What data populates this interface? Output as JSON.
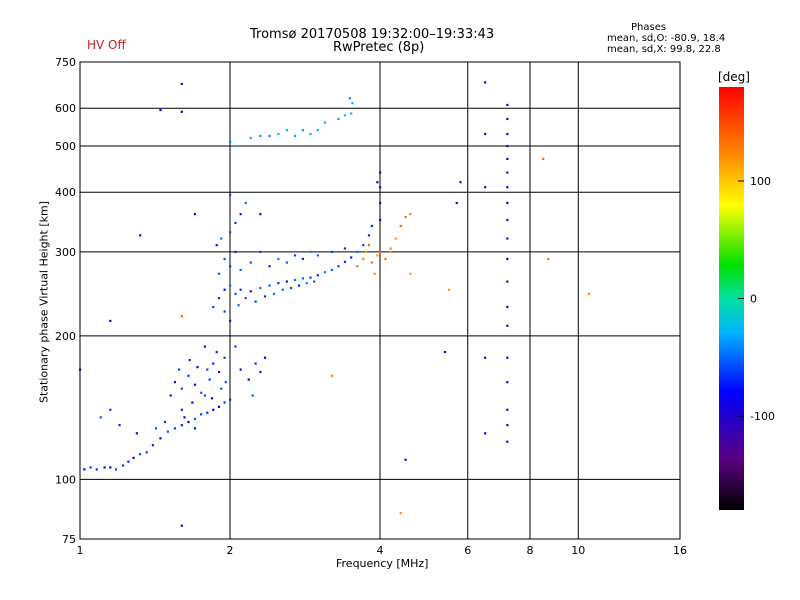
{
  "header": {
    "title_line1": "Tromsø 20170508 19:32:00–19:33:43",
    "title_line2": "RwPretec (8p)",
    "status": "HV Off"
  },
  "phase_box": {
    "title": "Phases",
    "line1": "mean, sd,O: -80.9, 18.4",
    "line2": "mean, sd,X:  99.8, 22.8"
  },
  "chart_data": {
    "type": "scatter",
    "title": "Tromsø 20170508 19:32:00–19:33:43",
    "subtitle": "RwPretec (8p)",
    "xlabel": "Frequency [MHz]",
    "ylabel": "Stationary phase Virtual Height [km]",
    "xscale": "log",
    "yscale": "log",
    "xlim": [
      1,
      16
    ],
    "ylim": [
      75,
      750
    ],
    "xticks": [
      1,
      2,
      4,
      6,
      8,
      10,
      16
    ],
    "yticks": [
      75,
      100,
      200,
      300,
      400,
      500,
      600,
      750
    ],
    "grid": true,
    "colorbar": {
      "label": "[deg]",
      "range": [
        -180,
        180
      ],
      "ticks": [
        -100,
        0,
        100
      ],
      "colormap": "rainbow"
    },
    "series": [
      {
        "name": "O-mode low-band trace (blue)",
        "phase_deg": -90,
        "points": [
          [
            1.02,
            105
          ],
          [
            1.05,
            106
          ],
          [
            1.08,
            105
          ],
          [
            1.12,
            106
          ],
          [
            1.15,
            106
          ],
          [
            1.18,
            105
          ],
          [
            1.22,
            107
          ],
          [
            1.25,
            109
          ],
          [
            1.28,
            111
          ],
          [
            1.32,
            113
          ],
          [
            1.36,
            114
          ],
          [
            1.4,
            118
          ],
          [
            1.45,
            122
          ],
          [
            1.5,
            126
          ],
          [
            1.55,
            128
          ],
          [
            1.6,
            130
          ],
          [
            1.65,
            132
          ],
          [
            1.7,
            134
          ],
          [
            1.75,
            137
          ],
          [
            1.8,
            138
          ],
          [
            1.85,
            140
          ],
          [
            1.9,
            142
          ],
          [
            1.95,
            145
          ],
          [
            2.0,
            147
          ],
          [
            1.52,
            150
          ],
          [
            1.55,
            160
          ],
          [
            1.6,
            155
          ],
          [
            1.65,
            165
          ],
          [
            1.7,
            158
          ],
          [
            1.72,
            172
          ],
          [
            1.78,
            150
          ],
          [
            1.82,
            162
          ],
          [
            1.85,
            175
          ],
          [
            1.9,
            168
          ],
          [
            1.92,
            155
          ],
          [
            1.95,
            180
          ],
          [
            1.6,
            140
          ],
          [
            1.68,
            145
          ],
          [
            1.75,
            152
          ],
          [
            1.8,
            170
          ],
          [
            1.88,
            185
          ],
          [
            1.62,
            135
          ],
          [
            1.7,
            128
          ],
          [
            1.58,
            170
          ],
          [
            1.66,
            178
          ],
          [
            1.78,
            190
          ],
          [
            1.84,
            148
          ],
          [
            1.96,
            160
          ],
          [
            2.05,
            190
          ],
          [
            2.1,
            170
          ],
          [
            2.18,
            162
          ],
          [
            2.22,
            150
          ],
          [
            2.25,
            175
          ],
          [
            2.3,
            168
          ],
          [
            2.35,
            180
          ],
          [
            1.1,
            135
          ],
          [
            1.15,
            140
          ],
          [
            1.2,
            130
          ],
          [
            1.3,
            125
          ],
          [
            1.42,
            128
          ],
          [
            1.48,
            132
          ]
        ]
      },
      {
        "name": "O-mode F-trace (blue/cyan)",
        "phase_deg": -80,
        "points": [
          [
            1.85,
            230
          ],
          [
            1.9,
            240
          ],
          [
            1.95,
            250
          ],
          [
            2.0,
            255
          ],
          [
            2.05,
            245
          ],
          [
            2.1,
            250
          ],
          [
            2.2,
            248
          ],
          [
            2.3,
            252
          ],
          [
            2.4,
            255
          ],
          [
            2.5,
            258
          ],
          [
            2.6,
            260
          ],
          [
            2.7,
            262
          ],
          [
            2.8,
            264
          ],
          [
            2.9,
            265
          ],
          [
            3.0,
            268
          ],
          [
            3.1,
            272
          ],
          [
            3.2,
            275
          ],
          [
            3.3,
            280
          ],
          [
            3.4,
            286
          ],
          [
            3.5,
            292
          ],
          [
            3.6,
            300
          ],
          [
            3.7,
            310
          ],
          [
            3.8,
            325
          ],
          [
            3.85,
            340
          ],
          [
            1.9,
            270
          ],
          [
            1.95,
            290
          ],
          [
            2.0,
            280
          ],
          [
            2.05,
            300
          ],
          [
            2.1,
            275
          ],
          [
            2.2,
            285
          ],
          [
            2.3,
            300
          ],
          [
            2.4,
            280
          ],
          [
            2.5,
            290
          ],
          [
            2.6,
            285
          ],
          [
            2.7,
            295
          ],
          [
            2.8,
            290
          ],
          [
            2.9,
            300
          ],
          [
            3.0,
            295
          ],
          [
            3.2,
            300
          ],
          [
            3.4,
            305
          ],
          [
            1.88,
            310
          ],
          [
            1.92,
            320
          ],
          [
            2.0,
            330
          ],
          [
            2.05,
            345
          ],
          [
            2.1,
            360
          ],
          [
            2.15,
            380
          ],
          [
            2.0,
            395
          ],
          [
            1.95,
            225
          ],
          [
            2.0,
            215
          ],
          [
            2.08,
            232
          ],
          [
            2.15,
            240
          ],
          [
            2.25,
            236
          ],
          [
            2.35,
            242
          ],
          [
            2.45,
            245
          ],
          [
            2.55,
            250
          ],
          [
            2.65,
            252
          ],
          [
            2.75,
            255
          ],
          [
            2.85,
            258
          ],
          [
            2.95,
            260
          ]
        ]
      },
      {
        "name": "E/Es layer (cyan, upper)",
        "phase_deg": -50,
        "points": [
          [
            2.0,
            510
          ],
          [
            2.05,
            500
          ],
          [
            2.2,
            520
          ],
          [
            2.3,
            525
          ],
          [
            2.4,
            525
          ],
          [
            2.5,
            530
          ],
          [
            2.6,
            540
          ],
          [
            2.7,
            525
          ],
          [
            2.8,
            540
          ],
          [
            2.9,
            530
          ],
          [
            3.0,
            540
          ],
          [
            3.1,
            560
          ],
          [
            3.3,
            570
          ],
          [
            3.4,
            580
          ],
          [
            3.5,
            585
          ],
          [
            3.52,
            615
          ],
          [
            3.48,
            630
          ]
        ]
      },
      {
        "name": "X-mode trace (orange)",
        "phase_deg": 130,
        "points": [
          [
            3.6,
            280
          ],
          [
            3.7,
            290
          ],
          [
            3.75,
            300
          ],
          [
            3.8,
            310
          ],
          [
            3.85,
            285
          ],
          [
            3.9,
            270
          ],
          [
            3.95,
            295
          ],
          [
            4.0,
            300
          ],
          [
            4.1,
            290
          ],
          [
            4.2,
            305
          ],
          [
            4.3,
            320
          ],
          [
            4.4,
            340
          ],
          [
            4.5,
            355
          ],
          [
            4.6,
            360
          ],
          [
            4.2,
            300
          ],
          [
            4.6,
            270
          ],
          [
            1.6,
            220
          ],
          [
            3.2,
            165
          ],
          [
            4.4,
            85
          ],
          [
            5.5,
            250
          ],
          [
            8.5,
            470
          ],
          [
            8.7,
            290
          ],
          [
            10.5,
            245
          ]
        ]
      },
      {
        "name": "Vertical interference (blue)",
        "phase_deg": -110,
        "points": [
          [
            7.2,
            610
          ],
          [
            7.2,
            570
          ],
          [
            7.2,
            530
          ],
          [
            7.2,
            500
          ],
          [
            7.2,
            470
          ],
          [
            7.2,
            440
          ],
          [
            7.2,
            410
          ],
          [
            7.2,
            380
          ],
          [
            7.2,
            350
          ],
          [
            7.2,
            320
          ],
          [
            7.2,
            290
          ],
          [
            7.2,
            260
          ],
          [
            7.2,
            230
          ],
          [
            7.2,
            210
          ],
          [
            7.2,
            180
          ],
          [
            7.2,
            160
          ],
          [
            7.2,
            140
          ],
          [
            7.2,
            130
          ],
          [
            7.2,
            120
          ],
          [
            6.5,
            680
          ],
          [
            6.5,
            530
          ],
          [
            6.5,
            410
          ],
          [
            6.5,
            180
          ],
          [
            6.5,
            125
          ],
          [
            4.0,
            440
          ],
          [
            4.0,
            410
          ],
          [
            4.0,
            380
          ],
          [
            4.0,
            350
          ],
          [
            3.95,
            420
          ],
          [
            5.7,
            380
          ],
          [
            5.8,
            420
          ],
          [
            5.4,
            185
          ],
          [
            4.5,
            110
          ],
          [
            1.6,
            80
          ],
          [
            1.6,
            675
          ],
          [
            1.45,
            595
          ],
          [
            1.6,
            590
          ],
          [
            1.15,
            215
          ],
          [
            1.32,
            325
          ],
          [
            1.0,
            170
          ],
          [
            2.3,
            360
          ],
          [
            1.7,
            360
          ]
        ]
      }
    ]
  }
}
